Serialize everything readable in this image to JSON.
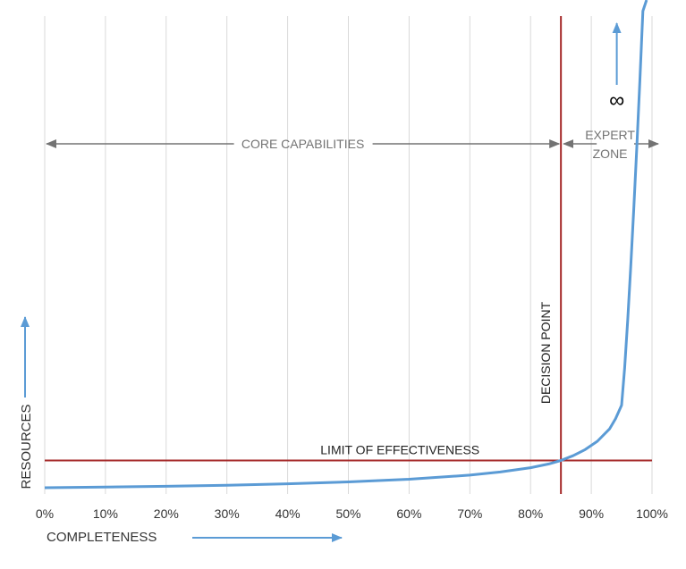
{
  "chart_data": {
    "type": "line",
    "xlabel": "COMPLETENESS",
    "ylabel": "RESOURCES",
    "xlim": [
      0,
      100
    ],
    "x_unit": "%",
    "x_ticks": [
      "0%",
      "10%",
      "20%",
      "30%",
      "40%",
      "50%",
      "60%",
      "70%",
      "80%",
      "90%",
      "100%"
    ],
    "grid": "vertical",
    "y_scale": "unbounded (no numeric ticks)",
    "series": [
      {
        "color": "#5b9bd5",
        "x": [
          0,
          10,
          20,
          30,
          40,
          50,
          60,
          70,
          75,
          80,
          83,
          85,
          87,
          89,
          91,
          93,
          94,
          95,
          95.5,
          96,
          96.5,
          97,
          97.5,
          98,
          98.5,
          99.1
        ],
        "y": [
          0.0,
          0.03,
          0.07,
          0.12,
          0.19,
          0.28,
          0.41,
          0.61,
          0.76,
          0.97,
          1.15,
          1.32,
          1.55,
          1.85,
          2.25,
          2.85,
          3.35,
          4.0,
          5.8,
          8.1,
          10.7,
          13.5,
          16.5,
          19.7,
          23.1,
          27.0
        ]
      }
    ],
    "limit_of_effectiveness": {
      "label": "LIMIT OF EFFECTIVENESS",
      "y": 1.32,
      "color": "#a52a2a"
    },
    "decision_point": {
      "label": "DECISION POINT",
      "x": 85,
      "color": "#a52a2a"
    },
    "regions": [
      {
        "label": "CORE CAPABILITIES",
        "x_start": 0,
        "x_end": 85
      },
      {
        "label": "EXPERT ZONE",
        "line1": "EXPERT",
        "line2": "ZONE",
        "x_start": 85,
        "x_end": 100
      }
    ],
    "infinity_symbol": "∞",
    "accent_color": "#5b9bd5",
    "annotation_color": "#737373"
  }
}
